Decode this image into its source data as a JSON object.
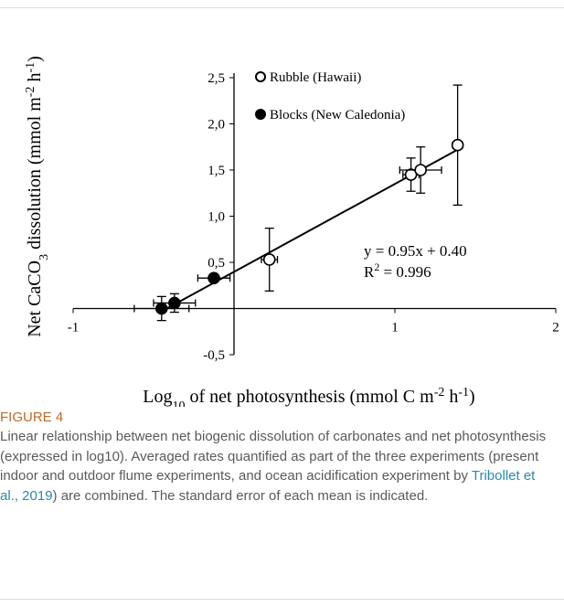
{
  "chart_data": {
    "type": "scatter",
    "y_label": [
      {
        "text": "Net CaCO"
      },
      {
        "text": "3",
        "shift": "sub"
      },
      {
        "text": " dissolution (mmol m"
      },
      {
        "text": "-2",
        "shift": "super"
      },
      {
        "text": " h"
      },
      {
        "text": "-1",
        "shift": "super"
      },
      {
        "text": ")"
      }
    ],
    "x_label": [
      {
        "text": "Log"
      },
      {
        "text": "10",
        "shift": "sub"
      },
      {
        "text": " of net photosynthesis (mmol C m"
      },
      {
        "text": "-2",
        "shift": "super"
      },
      {
        "text": " h"
      },
      {
        "text": "-1",
        "shift": "super"
      },
      {
        "text": ")"
      }
    ],
    "xlim": [
      -1,
      2
    ],
    "ylim": [
      -0.5,
      2.5
    ],
    "xticks": [
      -1,
      1,
      2
    ],
    "yticks": [
      {
        "value": -0.5,
        "label": "-0,5"
      },
      {
        "value": 0.5,
        "label": "0,5"
      },
      {
        "value": 1.0,
        "label": "1,0"
      },
      {
        "value": 1.5,
        "label": "1,5"
      },
      {
        "value": 2.0,
        "label": "2,0"
      },
      {
        "value": 2.5,
        "label": "2,5"
      }
    ],
    "series": [
      {
        "name": "Rubble (Hawaii)",
        "color": "#ffffff",
        "x": [
          0.22,
          1.1,
          1.16,
          1.39
        ],
        "y": [
          0.53,
          1.45,
          1.5,
          1.77
        ],
        "xerr": [
          0.05,
          0.05,
          0.13,
          0.03
        ],
        "yerr": [
          0.34,
          0.18,
          0.25,
          0.65
        ]
      },
      {
        "name": "Blocks (New Caledonia)",
        "color": "#000000",
        "x": [
          -0.45,
          -0.37,
          -0.125
        ],
        "y": [
          0.0,
          0.06,
          0.33
        ],
        "xerr": [
          0.17,
          0.13,
          0.1
        ],
        "yerr": [
          0.13,
          0.1,
          0.03
        ]
      }
    ],
    "trendline": {
      "x": [
        -0.47,
        1.4
      ],
      "y": [
        -0.05,
        1.73
      ]
    },
    "annotations": [
      [
        {
          "text": "y = 0.95x + 0.40"
        }
      ],
      [
        {
          "text": "R"
        },
        {
          "text": "2",
          "shift": "super"
        },
        {
          "text": " = 0.996"
        }
      ]
    ]
  },
  "caption": {
    "heading": "FIGURE 4",
    "text": [
      {
        "text": "Linear relationship between net biogenic dissolution of carbonates and net photosynthesis (expressed in log10). Averaged rates quantified as part of the three experiments (present indoor and outdoor flume experiments, and ocean acidification experiment by "
      },
      {
        "text": "Tribollet et al., 2019",
        "link": true
      },
      {
        "text": ") are combined. The standard error of each mean is indicated."
      }
    ]
  }
}
